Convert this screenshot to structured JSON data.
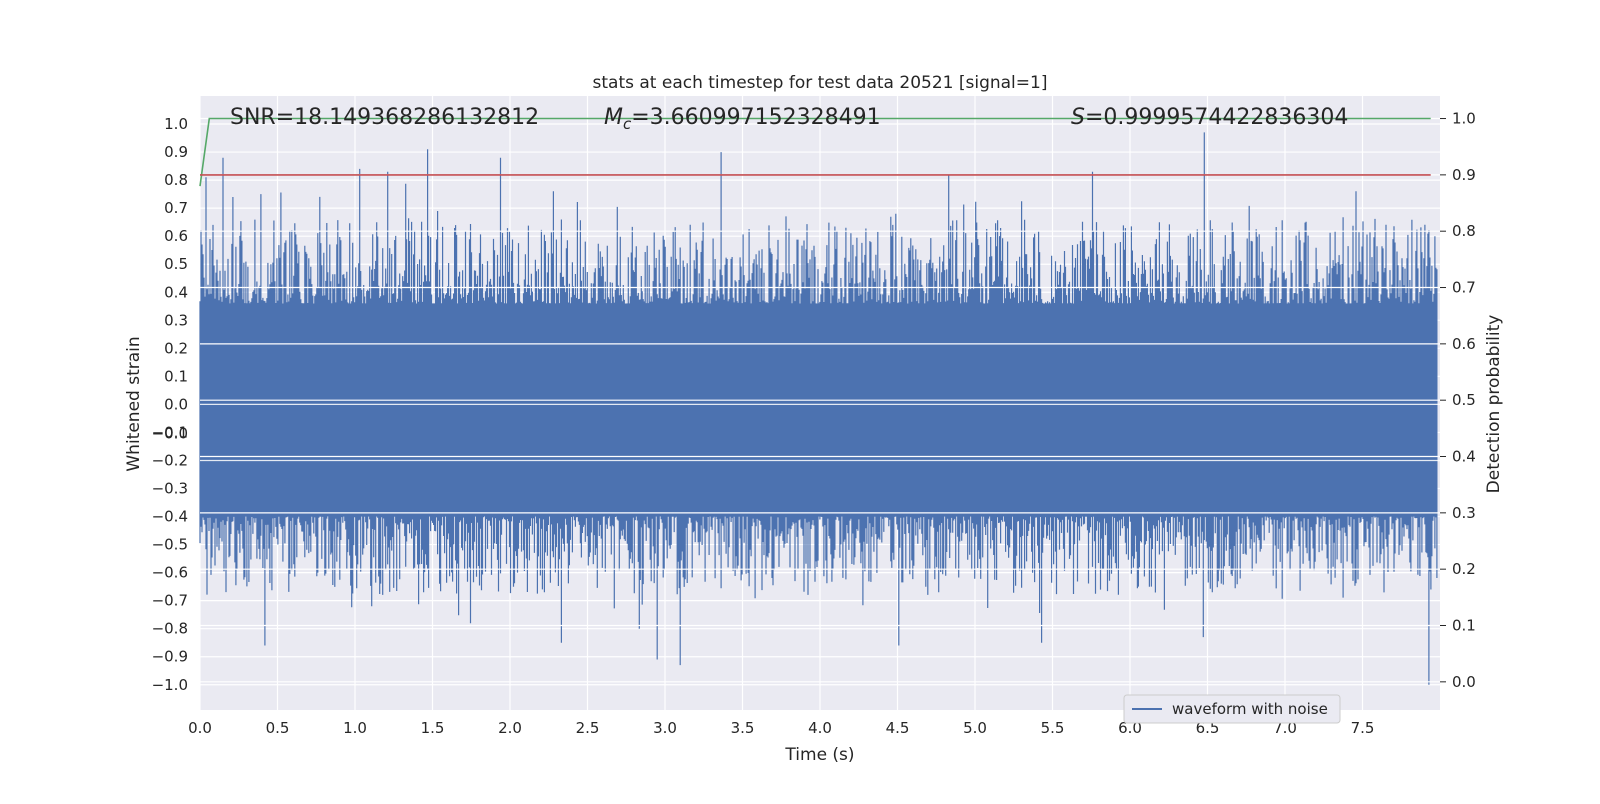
{
  "chart_data": {
    "type": "line",
    "title": "stats at each timestep for test data 20521 [signal=1]",
    "xlabel": "Time (s)",
    "ylabel": "Whitened strain",
    "y2label": "Detection probability",
    "xlim": [
      0.0,
      8.0
    ],
    "ylim": [
      -1.09,
      1.1
    ],
    "y2lim": [
      -0.05,
      1.04
    ],
    "xticks": [
      "0.0",
      "0.5",
      "1.0",
      "1.5",
      "2.0",
      "2.5",
      "3.0",
      "3.5",
      "4.0",
      "4.5",
      "5.0",
      "5.5",
      "6.0",
      "6.5",
      "7.0",
      "7.5"
    ],
    "yticks": [
      "1.0",
      "0.9",
      "0.8",
      "0.7",
      "0.6",
      "0.5",
      "0.4",
      "0.3",
      "0.2",
      "0.1",
      "0.0",
      "−0.0",
      "−0.1",
      "−0.2",
      "−0.3",
      "−0.4",
      "−0.5",
      "−0.6",
      "−0.7",
      "−0.8",
      "−0.9",
      "−1.0"
    ],
    "y2ticks": [
      "1.0",
      "0.9",
      "0.8",
      "0.7",
      "0.6",
      "0.5",
      "0.4",
      "0.3",
      "0.2",
      "0.1",
      "0.0"
    ],
    "grid": true,
    "legend_position": "lower-right",
    "annotations": {
      "snr": "SNR=18.149368286132812",
      "mc_symbol": "M",
      "mc_subscript": "c",
      "mc_value": "=3.660997152328491",
      "s_symbol": "S",
      "s_value": "=0.9999574422836304"
    },
    "series": [
      {
        "name": "waveform with noise",
        "color": "#4c72b0",
        "note_peaks_pos": [
          {
            "x": 0.04,
            "y": 0.81
          },
          {
            "x": 0.15,
            "y": 0.88
          },
          {
            "x": 0.39,
            "y": 0.75
          },
          {
            "x": 0.77,
            "y": 0.74
          },
          {
            "x": 1.03,
            "y": 0.84
          },
          {
            "x": 1.21,
            "y": 0.83
          },
          {
            "x": 1.47,
            "y": 0.91
          },
          {
            "x": 1.94,
            "y": 0.88
          },
          {
            "x": 2.28,
            "y": 0.76
          },
          {
            "x": 3.36,
            "y": 0.9
          },
          {
            "x": 4.83,
            "y": 0.82
          },
          {
            "x": 5.76,
            "y": 0.83
          },
          {
            "x": 6.48,
            "y": 0.97
          },
          {
            "x": 7.46,
            "y": 0.76
          }
        ],
        "note_peaks_neg": [
          {
            "x": 0.42,
            "y": -0.86
          },
          {
            "x": 1.11,
            "y": -0.72
          },
          {
            "x": 2.33,
            "y": -0.85
          },
          {
            "x": 2.95,
            "y": -0.91
          },
          {
            "x": 3.1,
            "y": -0.93
          },
          {
            "x": 4.51,
            "y": -0.86
          },
          {
            "x": 5.43,
            "y": -0.85
          },
          {
            "x": 6.47,
            "y": -0.83
          },
          {
            "x": 7.93,
            "y": -1.0
          }
        ]
      },
      {
        "name": "",
        "color": "#55a868",
        "axis": "right",
        "x": [
          0.0,
          0.06,
          7.94
        ],
        "y": [
          0.88,
          1.0,
          1.0
        ]
      },
      {
        "name": "",
        "color": "#c44e52",
        "axis": "right",
        "x": [
          0.0,
          7.94
        ],
        "y": [
          0.9,
          0.9
        ]
      }
    ]
  }
}
